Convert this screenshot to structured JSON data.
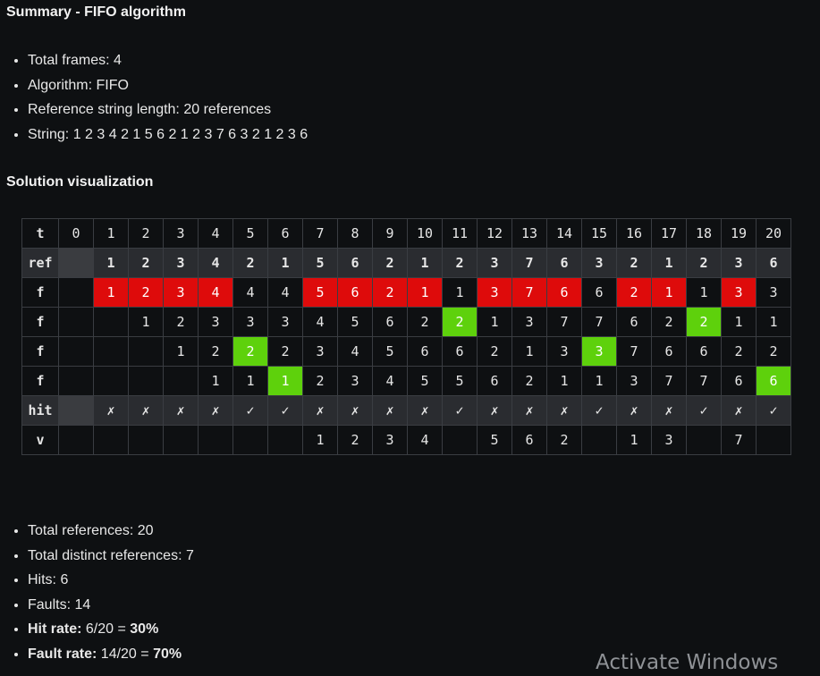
{
  "title": "Summary - FIFO algorithm",
  "summary": [
    "Total frames: 4",
    "Algorithm: FIFO",
    "Reference string length:  20 references",
    "String:  1 2 3 4 2 1 5 6 2 1 2 3 7 6 3 2 1 2 3 6"
  ],
  "visualization_title": "Solution visualization",
  "table": {
    "t": [
      "t",
      "0",
      "1",
      "2",
      "3",
      "4",
      "5",
      "6",
      "7",
      "8",
      "9",
      "10",
      "11",
      "12",
      "13",
      "14",
      "15",
      "16",
      "17",
      "18",
      "19",
      "20"
    ],
    "ref": [
      "ref",
      "",
      "1",
      "2",
      "3",
      "4",
      "2",
      "1",
      "5",
      "6",
      "2",
      "1",
      "2",
      "3",
      "7",
      "6",
      "3",
      "2",
      "1",
      "2",
      "3",
      "6"
    ],
    "f1": [
      "f",
      "",
      "1",
      "2",
      "3",
      "4",
      "4",
      "4",
      "5",
      "6",
      "2",
      "1",
      "1",
      "3",
      "7",
      "6",
      "6",
      "2",
      "1",
      "1",
      "3",
      "3"
    ],
    "f2": [
      "f",
      "",
      "",
      "1",
      "2",
      "3",
      "3",
      "3",
      "4",
      "5",
      "6",
      "2",
      "2",
      "1",
      "3",
      "7",
      "7",
      "6",
      "2",
      "2",
      "1",
      "1"
    ],
    "f3": [
      "f",
      "",
      "",
      "",
      "1",
      "2",
      "2",
      "2",
      "3",
      "4",
      "5",
      "6",
      "6",
      "2",
      "1",
      "3",
      "3",
      "7",
      "6",
      "6",
      "2",
      "2"
    ],
    "f4": [
      "f",
      "",
      "",
      "",
      "",
      "1",
      "1",
      "1",
      "2",
      "3",
      "4",
      "5",
      "5",
      "6",
      "2",
      "1",
      "1",
      "3",
      "7",
      "7",
      "6",
      "6"
    ],
    "hit": [
      "hit",
      "",
      "✗",
      "✗",
      "✗",
      "✗",
      "✓",
      "✓",
      "✗",
      "✗",
      "✗",
      "✗",
      "✓",
      "✗",
      "✗",
      "✗",
      "✓",
      "✗",
      "✗",
      "✓",
      "✗",
      "✓"
    ],
    "v": [
      "v",
      "",
      "",
      "",
      "",
      "",
      "",
      "",
      "1",
      "2",
      "3",
      "4",
      "",
      "5",
      "6",
      "2",
      "",
      "1",
      "3",
      "",
      "7",
      ""
    ]
  },
  "fault_cells": {
    "f1": [
      1,
      2,
      3,
      4,
      7,
      8,
      9,
      10,
      12,
      13,
      14,
      16,
      17,
      19
    ]
  },
  "hit_cells": {
    "f2": [
      11,
      18
    ],
    "f3": [
      5,
      15
    ],
    "f4": [
      6,
      20
    ]
  },
  "colors": {
    "fault": "#de0b0b",
    "hit": "#5ed10c",
    "background": "#0e1012"
  },
  "stats": {
    "total_references": "Total references: 20",
    "distinct": "Total distinct references: 7",
    "hits": "Hits: 6",
    "faults": "Faults: 14",
    "hit_rate_label": "Hit rate:",
    "hit_rate_expr": " 6/20 = ",
    "hit_rate_value": "30%",
    "fault_rate_label": "Fault rate:",
    "fault_rate_expr": " 14/20 = ",
    "fault_rate_value": "70%"
  },
  "watermark": "Activate Windows"
}
